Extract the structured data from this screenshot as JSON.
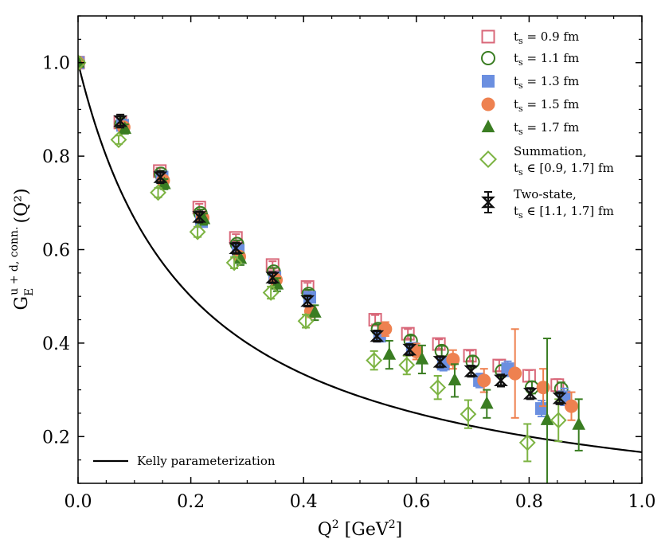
{
  "chart_data": {
    "type": "scatter",
    "title": "",
    "xlabel": "Q² [GeV²]",
    "ylabel": "G_E^{u+d, conn.}(Q²)",
    "ylabel_main": "G",
    "ylabel_sub": "E",
    "ylabel_sup": "u + d, conn.",
    "ylabel_tail": "(Q²)",
    "xlim": [
      0.0,
      1.0
    ],
    "ylim": [
      0.1,
      1.1
    ],
    "xticks": [
      0.0,
      0.2,
      0.4,
      0.6,
      0.8,
      1.0
    ],
    "xtick_labels": [
      "0.0",
      "0.2",
      "0.4",
      "0.6",
      "0.8",
      "1.0"
    ],
    "yticks": [
      0.2,
      0.4,
      0.6,
      0.8,
      1.0
    ],
    "ytick_labels": [
      "0.2",
      "0.4",
      "0.6",
      "0.8",
      "1.0"
    ],
    "grid": false,
    "legend_upper": "top-right",
    "legend_lower": "bottom-left",
    "series": [
      {
        "name": "t_s = 0.9 fm",
        "label_main": "t",
        "label_sub": "s",
        "label_rest": " = 0.9 fm",
        "marker": "square-open",
        "color": "#d9687a",
        "points": [
          {
            "x": 0.0,
            "y": 1.0,
            "err": 0.0
          },
          {
            "x": 0.075,
            "y": 0.872,
            "err": 0.006
          },
          {
            "x": 0.145,
            "y": 0.768,
            "err": 0.007
          },
          {
            "x": 0.215,
            "y": 0.69,
            "err": 0.008
          },
          {
            "x": 0.28,
            "y": 0.625,
            "err": 0.008
          },
          {
            "x": 0.345,
            "y": 0.567,
            "err": 0.008
          },
          {
            "x": 0.407,
            "y": 0.52,
            "err": 0.009
          },
          {
            "x": 0.527,
            "y": 0.45,
            "err": 0.01
          },
          {
            "x": 0.585,
            "y": 0.42,
            "err": 0.01
          },
          {
            "x": 0.64,
            "y": 0.398,
            "err": 0.01
          },
          {
            "x": 0.695,
            "y": 0.373,
            "err": 0.011
          },
          {
            "x": 0.747,
            "y": 0.352,
            "err": 0.012
          },
          {
            "x": 0.8,
            "y": 0.33,
            "err": 0.012
          },
          {
            "x": 0.85,
            "y": 0.31,
            "err": 0.013
          }
        ]
      },
      {
        "name": "t_s = 1.1 fm",
        "label_main": "t",
        "label_sub": "s",
        "label_rest": " = 1.1 fm",
        "marker": "circle-open",
        "color": "#3a7d22",
        "points": [
          {
            "x": 0.0,
            "y": 1.0,
            "err": 0.0
          },
          {
            "x": 0.077,
            "y": 0.868,
            "err": 0.006
          },
          {
            "x": 0.147,
            "y": 0.762,
            "err": 0.007
          },
          {
            "x": 0.217,
            "y": 0.678,
            "err": 0.008
          },
          {
            "x": 0.282,
            "y": 0.612,
            "err": 0.008
          },
          {
            "x": 0.347,
            "y": 0.553,
            "err": 0.008
          },
          {
            "x": 0.409,
            "y": 0.505,
            "err": 0.009
          },
          {
            "x": 0.532,
            "y": 0.43,
            "err": 0.01
          },
          {
            "x": 0.59,
            "y": 0.405,
            "err": 0.011
          },
          {
            "x": 0.645,
            "y": 0.383,
            "err": 0.011
          },
          {
            "x": 0.7,
            "y": 0.36,
            "err": 0.012
          },
          {
            "x": 0.752,
            "y": 0.34,
            "err": 0.012
          },
          {
            "x": 0.805,
            "y": 0.305,
            "err": 0.013
          },
          {
            "x": 0.857,
            "y": 0.302,
            "err": 0.014
          }
        ]
      },
      {
        "name": "t_s = 1.3 fm",
        "label_main": "t",
        "label_sub": "s",
        "label_rest": " = 1.3 fm",
        "marker": "square-filled",
        "color": "#6b8fe0",
        "points": [
          {
            "x": 0.0,
            "y": 1.0,
            "err": 0.0
          },
          {
            "x": 0.079,
            "y": 0.866,
            "err": 0.007
          },
          {
            "x": 0.149,
            "y": 0.755,
            "err": 0.008
          },
          {
            "x": 0.219,
            "y": 0.66,
            "err": 0.009
          },
          {
            "x": 0.284,
            "y": 0.598,
            "err": 0.01
          },
          {
            "x": 0.349,
            "y": 0.54,
            "err": 0.01
          },
          {
            "x": 0.411,
            "y": 0.498,
            "err": 0.011
          },
          {
            "x": 0.535,
            "y": 0.415,
            "err": 0.012
          },
          {
            "x": 0.593,
            "y": 0.388,
            "err": 0.013
          },
          {
            "x": 0.648,
            "y": 0.355,
            "err": 0.014
          },
          {
            "x": 0.712,
            "y": 0.32,
            "err": 0.015
          },
          {
            "x": 0.762,
            "y": 0.345,
            "err": 0.016
          },
          {
            "x": 0.822,
            "y": 0.26,
            "err": 0.017
          },
          {
            "x": 0.862,
            "y": 0.285,
            "err": 0.018
          }
        ]
      },
      {
        "name": "t_s = 1.5 fm",
        "label_main": "t",
        "label_sub": "s",
        "label_rest": " = 1.5 fm",
        "marker": "circle-filled",
        "color": "#ee8150",
        "points": [
          {
            "x": 0.0,
            "y": 1.0,
            "err": 0.0
          },
          {
            "x": 0.081,
            "y": 0.862,
            "err": 0.008
          },
          {
            "x": 0.151,
            "y": 0.748,
            "err": 0.009
          },
          {
            "x": 0.221,
            "y": 0.668,
            "err": 0.01
          },
          {
            "x": 0.286,
            "y": 0.585,
            "err": 0.011
          },
          {
            "x": 0.351,
            "y": 0.535,
            "err": 0.012
          },
          {
            "x": 0.413,
            "y": 0.468,
            "err": 0.013
          },
          {
            "x": 0.545,
            "y": 0.43,
            "err": 0.015
          },
          {
            "x": 0.6,
            "y": 0.382,
            "err": 0.017
          },
          {
            "x": 0.665,
            "y": 0.365,
            "err": 0.02
          },
          {
            "x": 0.72,
            "y": 0.32,
            "err": 0.025
          },
          {
            "x": 0.775,
            "y": 0.335,
            "err": 0.095
          },
          {
            "x": 0.825,
            "y": 0.305,
            "err": 0.04
          },
          {
            "x": 0.875,
            "y": 0.265,
            "err": 0.03
          }
        ]
      },
      {
        "name": "t_s = 1.7 fm",
        "label_main": "t",
        "label_sub": "s",
        "label_rest": " = 1.7 fm",
        "marker": "triangle-filled",
        "color": "#3a7d22",
        "points": [
          {
            "x": 0.0,
            "y": 1.0,
            "err": 0.0
          },
          {
            "x": 0.083,
            "y": 0.858,
            "err": 0.01
          },
          {
            "x": 0.153,
            "y": 0.74,
            "err": 0.011
          },
          {
            "x": 0.223,
            "y": 0.665,
            "err": 0.012
          },
          {
            "x": 0.288,
            "y": 0.58,
            "err": 0.013
          },
          {
            "x": 0.353,
            "y": 0.525,
            "err": 0.014
          },
          {
            "x": 0.42,
            "y": 0.465,
            "err": 0.016
          },
          {
            "x": 0.552,
            "y": 0.375,
            "err": 0.03
          },
          {
            "x": 0.61,
            "y": 0.365,
            "err": 0.03
          },
          {
            "x": 0.668,
            "y": 0.32,
            "err": 0.035
          },
          {
            "x": 0.725,
            "y": 0.27,
            "err": 0.03
          },
          {
            "x": 0.832,
            "y": 0.235,
            "err": 0.175
          },
          {
            "x": 0.888,
            "y": 0.225,
            "err": 0.055
          }
        ]
      },
      {
        "name": "Summation, t_s ∈ [0.9, 1.7] fm",
        "label_line1": "Summation,",
        "label_main": "t",
        "label_sub": "s",
        "label_rest": " ∈ [0.9, 1.7] fm",
        "marker": "diamond-open",
        "color": "#7cb342",
        "points": [
          {
            "x": 0.0,
            "y": 1.0,
            "err": 0.0
          },
          {
            "x": 0.072,
            "y": 0.835,
            "err": 0.009
          },
          {
            "x": 0.142,
            "y": 0.722,
            "err": 0.01
          },
          {
            "x": 0.212,
            "y": 0.638,
            "err": 0.011
          },
          {
            "x": 0.277,
            "y": 0.572,
            "err": 0.012
          },
          {
            "x": 0.342,
            "y": 0.508,
            "err": 0.013
          },
          {
            "x": 0.404,
            "y": 0.447,
            "err": 0.014
          },
          {
            "x": 0.525,
            "y": 0.363,
            "err": 0.02
          },
          {
            "x": 0.583,
            "y": 0.353,
            "err": 0.02
          },
          {
            "x": 0.638,
            "y": 0.305,
            "err": 0.025
          },
          {
            "x": 0.692,
            "y": 0.248,
            "err": 0.03
          },
          {
            "x": 0.797,
            "y": 0.187,
            "err": 0.04
          },
          {
            "x": 0.852,
            "y": 0.235,
            "err": 0.045
          }
        ]
      },
      {
        "name": "Two-state, t_s ∈ [1.1, 1.7] fm",
        "label_line1": "Two-state,",
        "label_main": "t",
        "label_sub": "s",
        "label_rest": " ∈ [1.1, 1.7] fm",
        "marker": "hourglass",
        "color": "#111111",
        "points": [
          {
            "x": 0.075,
            "y": 0.875,
            "err": 0.014
          },
          {
            "x": 0.146,
            "y": 0.755,
            "err": 0.013
          },
          {
            "x": 0.215,
            "y": 0.67,
            "err": 0.012
          },
          {
            "x": 0.28,
            "y": 0.603,
            "err": 0.012
          },
          {
            "x": 0.345,
            "y": 0.54,
            "err": 0.012
          },
          {
            "x": 0.407,
            "y": 0.49,
            "err": 0.012
          },
          {
            "x": 0.53,
            "y": 0.415,
            "err": 0.012
          },
          {
            "x": 0.588,
            "y": 0.386,
            "err": 0.012
          },
          {
            "x": 0.642,
            "y": 0.36,
            "err": 0.012
          },
          {
            "x": 0.697,
            "y": 0.34,
            "err": 0.012
          },
          {
            "x": 0.75,
            "y": 0.32,
            "err": 0.013
          },
          {
            "x": 0.802,
            "y": 0.292,
            "err": 0.012
          },
          {
            "x": 0.854,
            "y": 0.282,
            "err": 0.013
          }
        ]
      }
    ],
    "curve": {
      "name": "Kelly parameterization",
      "formula": "1/(1 + 5.0 x)",
      "color": "#000000",
      "x": [
        0.0,
        0.025,
        0.05,
        0.075,
        0.1,
        0.15,
        0.2,
        0.25,
        0.3,
        0.35,
        0.4,
        0.45,
        0.5,
        0.55,
        0.6,
        0.65,
        0.7,
        0.75,
        0.8,
        0.85,
        0.9,
        0.95,
        1.0
      ],
      "y": [
        1.0,
        0.889,
        0.8,
        0.727,
        0.667,
        0.571,
        0.5,
        0.444,
        0.4,
        0.364,
        0.333,
        0.308,
        0.286,
        0.267,
        0.25,
        0.235,
        0.222,
        0.211,
        0.2,
        0.19,
        0.182,
        0.174,
        0.167
      ]
    }
  }
}
